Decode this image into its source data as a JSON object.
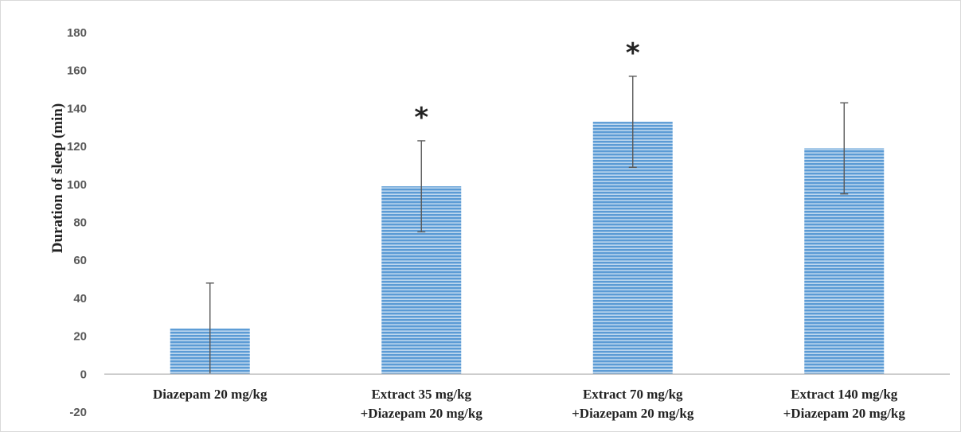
{
  "chart_data": {
    "type": "bar",
    "ylabel": "Duration of sleep (min)",
    "xlabel": "",
    "title": "",
    "ylim": [
      -20,
      180
    ],
    "y_ticks": [
      "-20",
      "0",
      "20",
      "40",
      "60",
      "80",
      "100",
      "120",
      "140",
      "160",
      "180"
    ],
    "grid": false,
    "categories": [
      [
        "Diazepam 20 mg/kg"
      ],
      [
        "Extract 35 mg/kg",
        "+Diazepam 20 mg/kg"
      ],
      [
        "Extract 70 mg/kg",
        "+Diazepam 20 mg/kg"
      ],
      [
        "Extract 140 mg/kg",
        "+Diazepam 20 mg/kg"
      ]
    ],
    "values": [
      24,
      99,
      133,
      119
    ],
    "error": [
      24,
      24,
      24,
      24
    ],
    "annotations": [
      "",
      "*",
      "*",
      ""
    ],
    "colors": {
      "bar": "#5b9bd5",
      "bar_light": "#bdd7ee",
      "error": "#595959",
      "axis": "#bfbfbf"
    }
  }
}
